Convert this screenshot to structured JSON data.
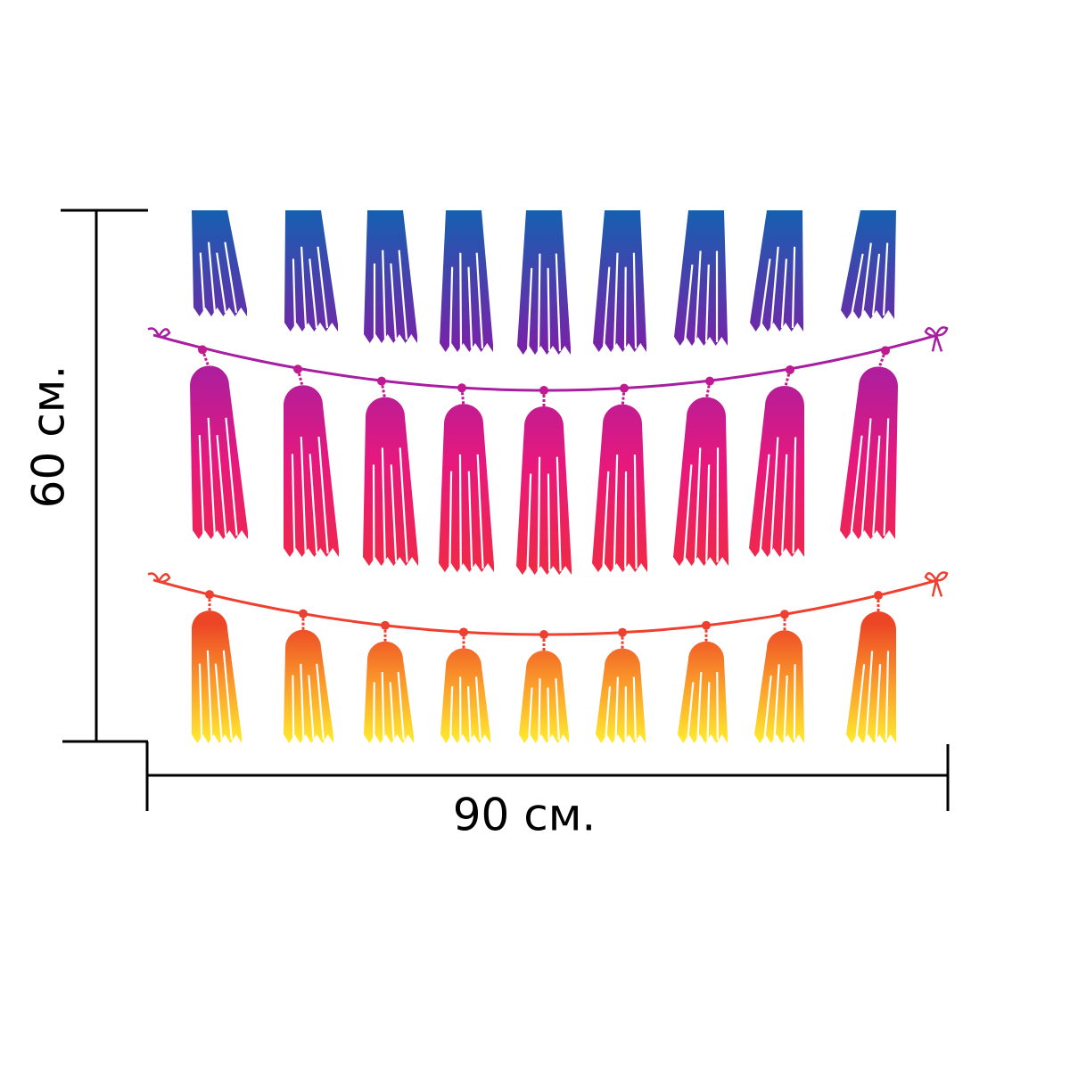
{
  "dimensions": {
    "height": {
      "label": "60 см."
    },
    "width": {
      "label": "90 см."
    }
  }
}
